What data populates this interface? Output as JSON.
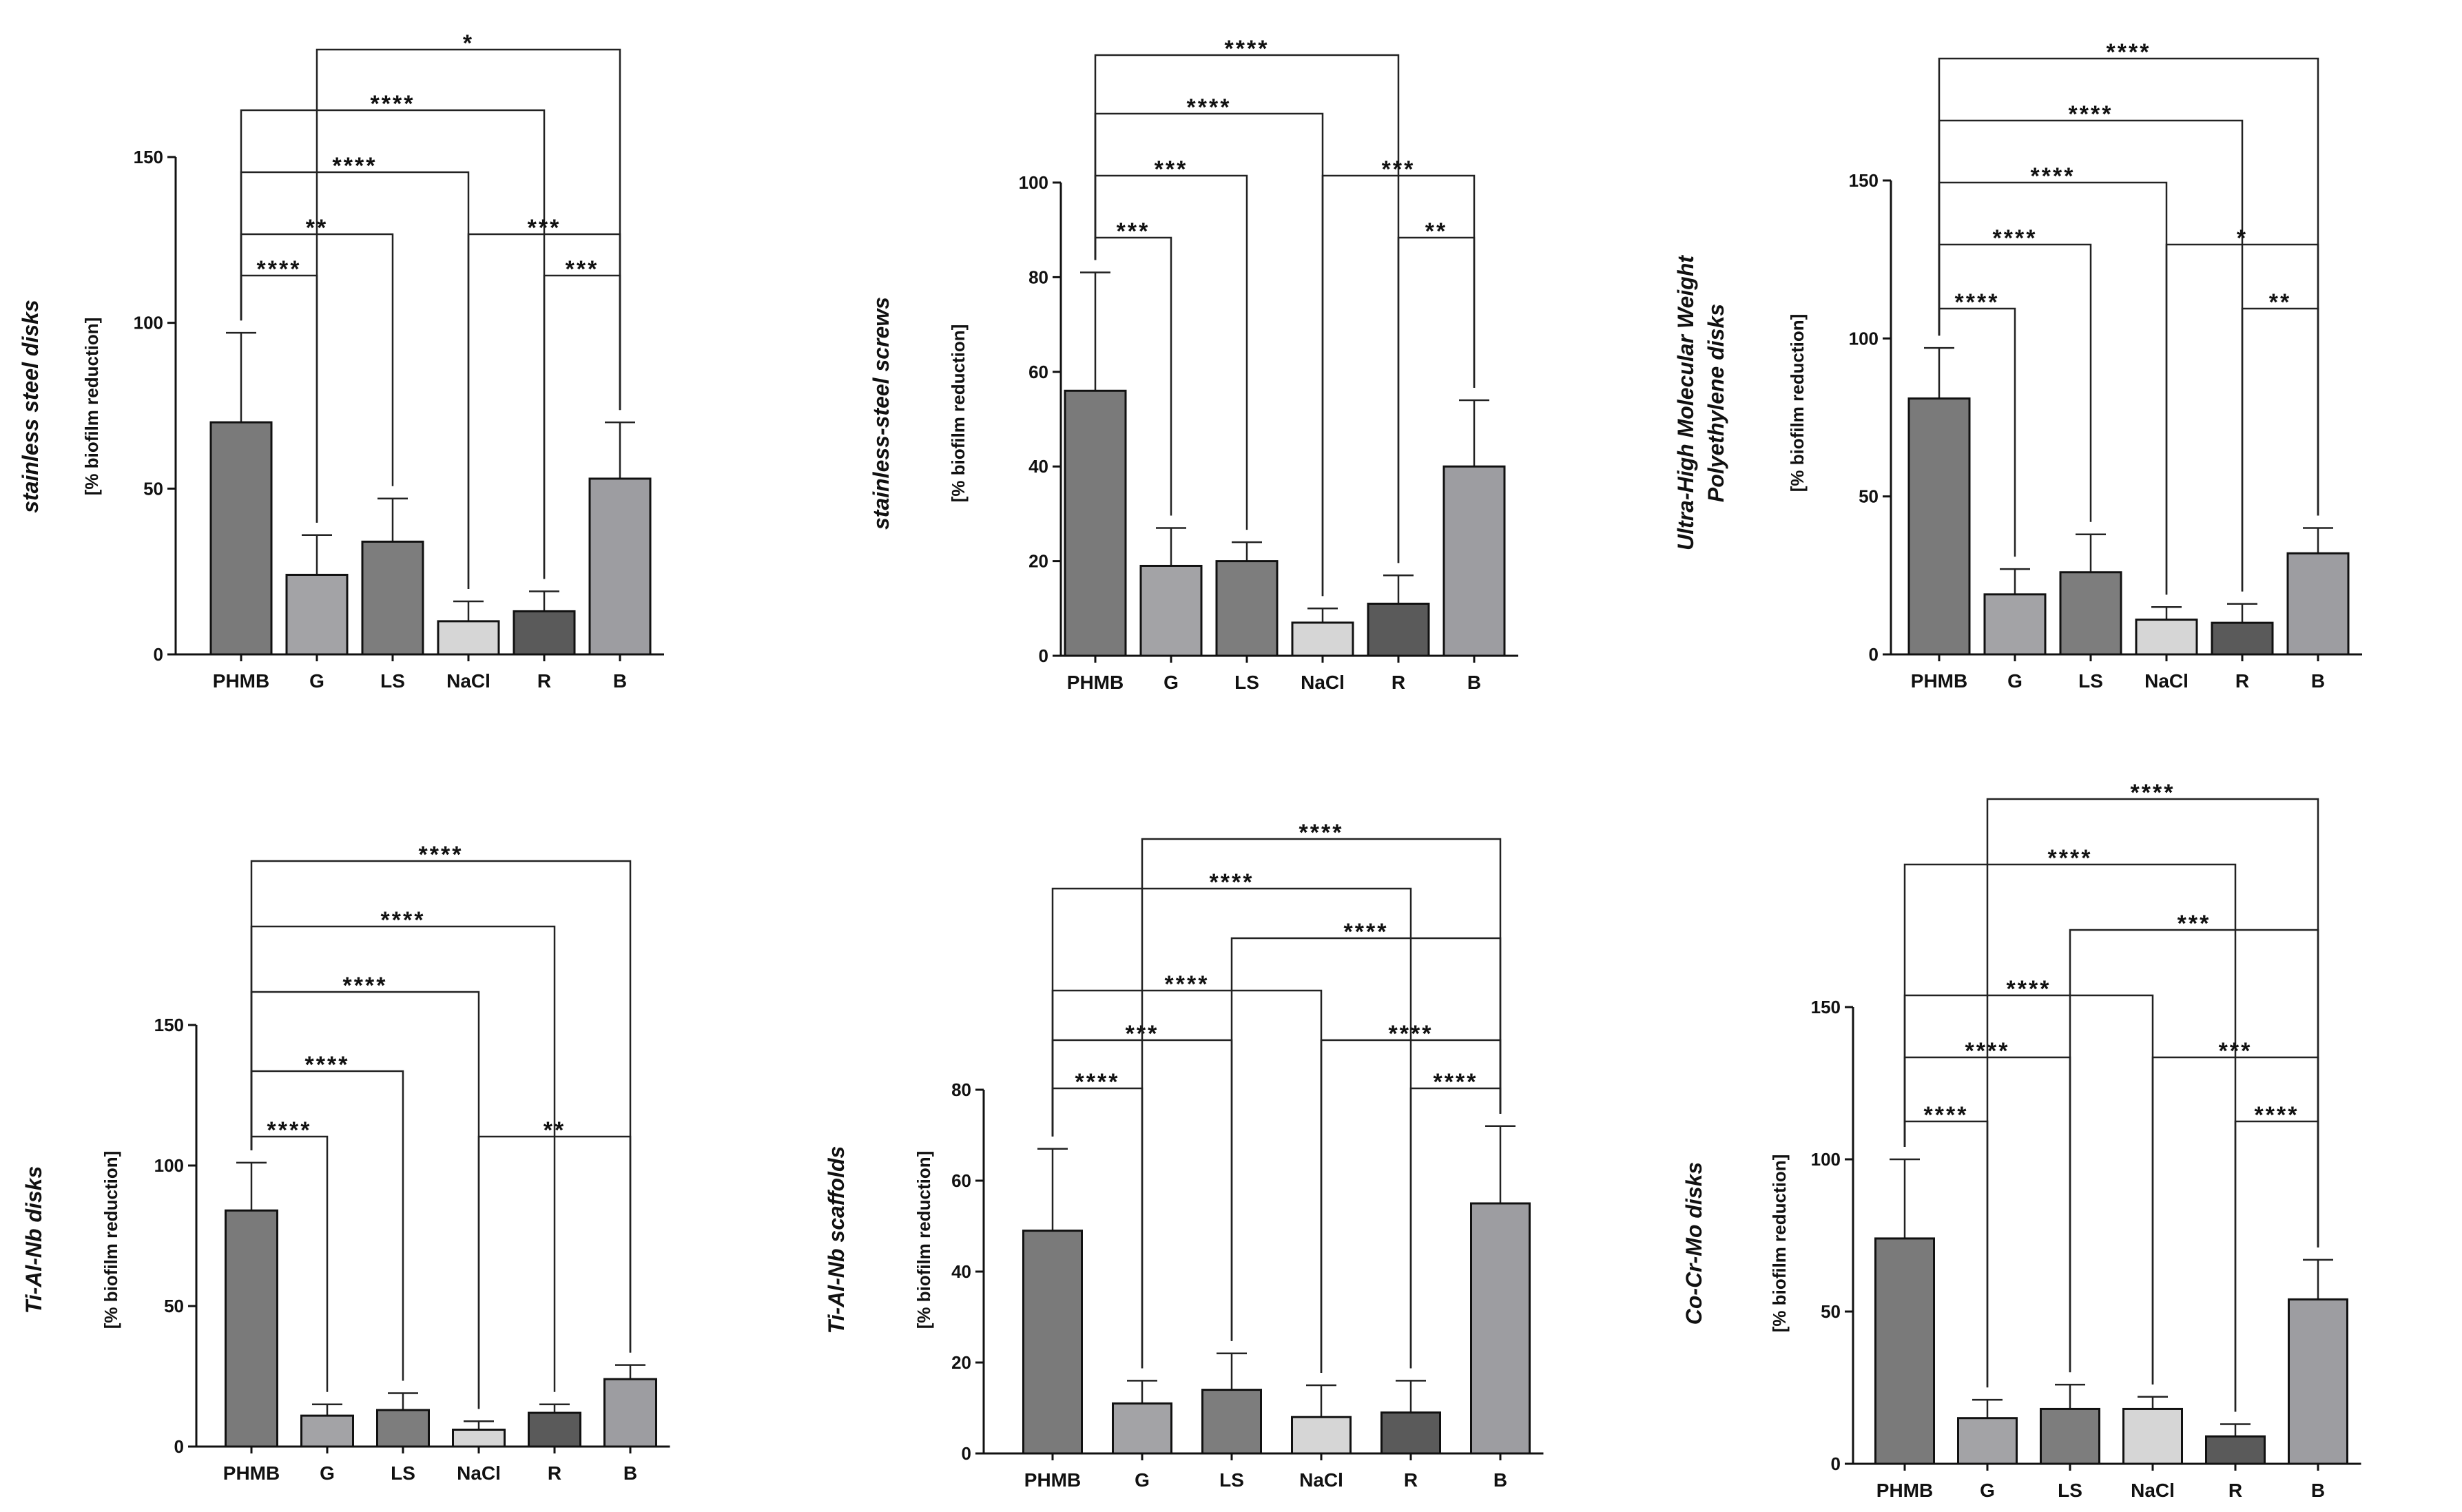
{
  "chart_data": [
    {
      "type": "bar",
      "title": "stainless steel disks",
      "ylabel": "[% biofilm reduction]",
      "ylim": [
        0,
        150
      ],
      "yticks": [
        0,
        50,
        100,
        150
      ],
      "categories": [
        "PHMB",
        "G",
        "LS",
        "NaCl",
        "R",
        "B"
      ],
      "values": [
        70,
        24,
        34,
        10,
        13,
        53
      ],
      "errors": [
        27,
        12,
        13,
        6,
        6,
        17
      ],
      "colors": [
        "#7a7a7a",
        "#a3a3a6",
        "#7d7d7d",
        "#d6d6d6",
        "#5a5a5a",
        "#9d9da1"
      ],
      "comparisons": [
        {
          "from": "PHMB",
          "to": "G",
          "label": "****"
        },
        {
          "from": "PHMB",
          "to": "LS",
          "label": "**"
        },
        {
          "from": "PHMB",
          "to": "NaCl",
          "label": "****"
        },
        {
          "from": "PHMB",
          "to": "R",
          "label": "****"
        },
        {
          "from": "G",
          "to": "B",
          "label": "*"
        },
        {
          "from": "NaCl",
          "to": "B",
          "label": "***"
        },
        {
          "from": "R",
          "to": "B",
          "label": "***"
        }
      ]
    },
    {
      "type": "bar",
      "title": "stainless-steel screws",
      "ylabel": "[% biofilm reduction]",
      "ylim": [
        0,
        100
      ],
      "yticks": [
        0,
        20,
        40,
        60,
        80,
        100
      ],
      "categories": [
        "PHMB",
        "G",
        "LS",
        "NaCl",
        "R",
        "B"
      ],
      "values": [
        56,
        19,
        20,
        7,
        11,
        40
      ],
      "errors": [
        25,
        8,
        4,
        3,
        6,
        14
      ],
      "colors": [
        "#7a7a7a",
        "#a3a3a6",
        "#7d7d7d",
        "#d6d6d6",
        "#5a5a5a",
        "#9d9da1"
      ],
      "comparisons": [
        {
          "from": "PHMB",
          "to": "G",
          "label": "***"
        },
        {
          "from": "PHMB",
          "to": "LS",
          "label": "***"
        },
        {
          "from": "PHMB",
          "to": "NaCl",
          "label": "****"
        },
        {
          "from": "PHMB",
          "to": "R",
          "label": "****"
        },
        {
          "from": "NaCl",
          "to": "B",
          "label": "***"
        },
        {
          "from": "R",
          "to": "B",
          "label": "**"
        }
      ]
    },
    {
      "type": "bar",
      "title": "Ultra-High Molecular Weight Polyethylene disks",
      "title_lines": [
        "Ultra-High Molecular Weight",
        "Polyethylene disks"
      ],
      "ylabel": "[% biofilm reduction]",
      "ylim": [
        0,
        150
      ],
      "yticks": [
        0,
        50,
        100,
        150
      ],
      "categories": [
        "PHMB",
        "G",
        "LS",
        "NaCl",
        "R",
        "B"
      ],
      "values": [
        81,
        19,
        26,
        11,
        10,
        32
      ],
      "errors": [
        16,
        8,
        12,
        4,
        6,
        8
      ],
      "colors": [
        "#7a7a7a",
        "#a3a3a6",
        "#7d7d7d",
        "#d6d6d6",
        "#5a5a5a",
        "#9d9da1"
      ],
      "comparisons": [
        {
          "from": "PHMB",
          "to": "G",
          "label": "****"
        },
        {
          "from": "PHMB",
          "to": "LS",
          "label": "****"
        },
        {
          "from": "PHMB",
          "to": "NaCl",
          "label": "****"
        },
        {
          "from": "PHMB",
          "to": "R",
          "label": "****"
        },
        {
          "from": "PHMB",
          "to": "B",
          "label": "****"
        },
        {
          "from": "NaCl",
          "to": "B",
          "label": "*"
        },
        {
          "from": "R",
          "to": "B",
          "label": "**"
        }
      ]
    },
    {
      "type": "bar",
      "title": "Ti-Al-Nb disks",
      "ylabel": "[% biofilm reduction]",
      "ylim": [
        0,
        150
      ],
      "yticks": [
        0,
        50,
        100,
        150
      ],
      "categories": [
        "PHMB",
        "G",
        "LS",
        "NaCl",
        "R",
        "B"
      ],
      "values": [
        84,
        11,
        13,
        6,
        12,
        24
      ],
      "errors": [
        17,
        4,
        6,
        3,
        3,
        5
      ],
      "colors": [
        "#7a7a7a",
        "#a3a3a6",
        "#7d7d7d",
        "#d6d6d6",
        "#5a5a5a",
        "#9d9da1"
      ],
      "comparisons": [
        {
          "from": "PHMB",
          "to": "G",
          "label": "****"
        },
        {
          "from": "PHMB",
          "to": "LS",
          "label": "****"
        },
        {
          "from": "PHMB",
          "to": "NaCl",
          "label": "****"
        },
        {
          "from": "PHMB",
          "to": "R",
          "label": "****"
        },
        {
          "from": "PHMB",
          "to": "B",
          "label": "****"
        },
        {
          "from": "NaCl",
          "to": "B",
          "label": "**"
        }
      ]
    },
    {
      "type": "bar",
      "title": "Ti-Al-Nb scaffolds",
      "ylabel": "[% biofilm reduction]",
      "ylim": [
        0,
        80
      ],
      "yticks": [
        0,
        20,
        40,
        60,
        80
      ],
      "categories": [
        "PHMB",
        "G",
        "LS",
        "NaCl",
        "R",
        "B"
      ],
      "values": [
        49,
        11,
        14,
        8,
        9,
        55
      ],
      "errors": [
        18,
        5,
        8,
        7,
        7,
        17
      ],
      "colors": [
        "#7a7a7a",
        "#a3a3a6",
        "#7d7d7d",
        "#d6d6d6",
        "#5a5a5a",
        "#9d9da1"
      ],
      "comparisons": [
        {
          "from": "PHMB",
          "to": "G",
          "label": "****"
        },
        {
          "from": "PHMB",
          "to": "LS",
          "label": "***"
        },
        {
          "from": "PHMB",
          "to": "NaCl",
          "label": "****"
        },
        {
          "from": "PHMB",
          "to": "R",
          "label": "****"
        },
        {
          "from": "G",
          "to": "B",
          "label": "****"
        },
        {
          "from": "LS",
          "to": "B",
          "label": "****"
        },
        {
          "from": "NaCl",
          "to": "B",
          "label": "****"
        },
        {
          "from": "R",
          "to": "B",
          "label": "****"
        }
      ]
    },
    {
      "type": "bar",
      "title": "Co-Cr-Mo disks",
      "ylabel": "[% biofilm reduction]",
      "ylim": [
        0,
        150
      ],
      "yticks": [
        0,
        50,
        100,
        150
      ],
      "categories": [
        "PHMB",
        "G",
        "LS",
        "NaCl",
        "R",
        "B"
      ],
      "values": [
        74,
        15,
        18,
        18,
        9,
        54
      ],
      "errors": [
        26,
        6,
        8,
        4,
        4,
        13
      ],
      "colors": [
        "#7a7a7a",
        "#a3a3a6",
        "#7d7d7d",
        "#d6d6d6",
        "#5a5a5a",
        "#9d9da1"
      ],
      "comparisons": [
        {
          "from": "PHMB",
          "to": "G",
          "label": "****"
        },
        {
          "from": "PHMB",
          "to": "LS",
          "label": "****"
        },
        {
          "from": "PHMB",
          "to": "NaCl",
          "label": "****"
        },
        {
          "from": "PHMB",
          "to": "R",
          "label": "****"
        },
        {
          "from": "G",
          "to": "B",
          "label": "****"
        },
        {
          "from": "LS",
          "to": "B",
          "label": "***"
        },
        {
          "from": "NaCl",
          "to": "B",
          "label": "***"
        },
        {
          "from": "R",
          "to": "B",
          "label": "****"
        }
      ]
    }
  ]
}
